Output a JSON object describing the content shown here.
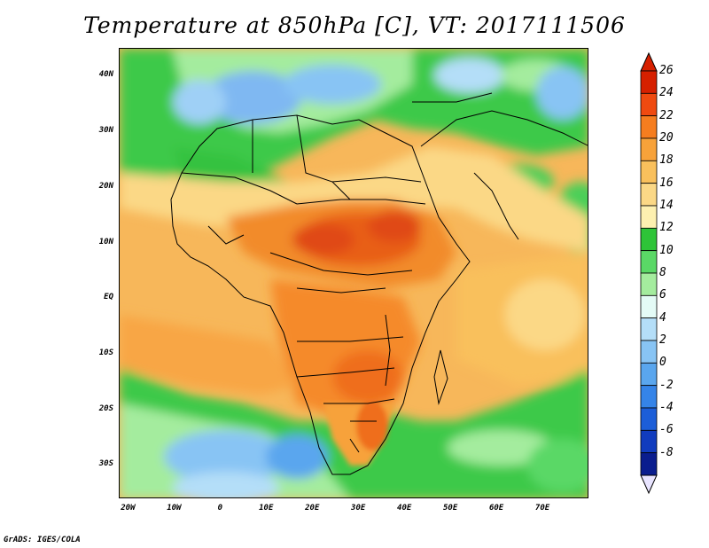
{
  "title": "Temperature at 850hPa [C], VT: 2017111506",
  "credit": "GrADS: IGES/COLA",
  "lat_axis": {
    "range": [
      -36,
      45
    ],
    "ticks": [
      {
        "label": "40N",
        "value": 40
      },
      {
        "label": "30N",
        "value": 30
      },
      {
        "label": "20N",
        "value": 20
      },
      {
        "label": "10N",
        "value": 10
      },
      {
        "label": "EQ",
        "value": 0
      },
      {
        "label": "10S",
        "value": -10
      },
      {
        "label": "20S",
        "value": -20
      },
      {
        "label": "30S",
        "value": -30
      }
    ]
  },
  "lon_axis": {
    "range": [
      -22,
      80
    ],
    "ticks": [
      {
        "label": "20W",
        "value": -20
      },
      {
        "label": "10W",
        "value": -10
      },
      {
        "label": "0",
        "value": 0
      },
      {
        "label": "10E",
        "value": 10
      },
      {
        "label": "20E",
        "value": 20
      },
      {
        "label": "30E",
        "value": 30
      },
      {
        "label": "40E",
        "value": 40
      },
      {
        "label": "50E",
        "value": 50
      },
      {
        "label": "60E",
        "value": 60
      },
      {
        "label": "70E",
        "value": 70
      }
    ]
  },
  "colorbar": {
    "labels": [
      "26",
      "24",
      "22",
      "20",
      "18",
      "16",
      "14",
      "12",
      "10",
      "8",
      "6",
      "4",
      "2",
      "0",
      "-2",
      "-4",
      "-6",
      "-8"
    ],
    "colors": [
      "#d62000",
      "#ef4a10",
      "#f57d1f",
      "#f7a23a",
      "#f9c05c",
      "#fbd886",
      "#fdf0b0",
      "#2ec438",
      "#5ad866",
      "#a4ec9e",
      "#e4fbf6",
      "#b4def8",
      "#88c4f4",
      "#5aa6ee",
      "#3584e8",
      "#1c5ed8",
      "#113cbe",
      "#0a1d8e"
    ],
    "over_color": "#d62000",
    "under_color": "#e8e4ff"
  },
  "colors": {
    "land_border": "#000000"
  }
}
